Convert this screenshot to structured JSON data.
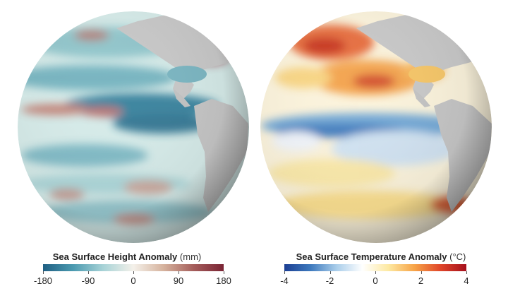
{
  "maps": [
    {
      "legend": {
        "title": "Sea Surface Height Anomaly",
        "unit": "(mm)",
        "ticks": [
          "-180",
          "-90",
          "0",
          "90",
          "180"
        ],
        "colors": [
          "#1f5f83",
          "#4b9ab0",
          "#a8d3d7",
          "#f4f1ea",
          "#d6b39e",
          "#a55e5c",
          "#7a2434"
        ]
      }
    },
    {
      "legend": {
        "title": "Sea Surface Temperature Anomaly",
        "unit": "(°C)",
        "ticks": [
          "-4",
          "-2",
          "0",
          "2",
          "4"
        ],
        "colors": [
          "#1c3f93",
          "#3d79bd",
          "#a9cdea",
          "#ffffff",
          "#fde9a2",
          "#f7a448",
          "#e0462a",
          "#a50f1c"
        ]
      }
    }
  ]
}
